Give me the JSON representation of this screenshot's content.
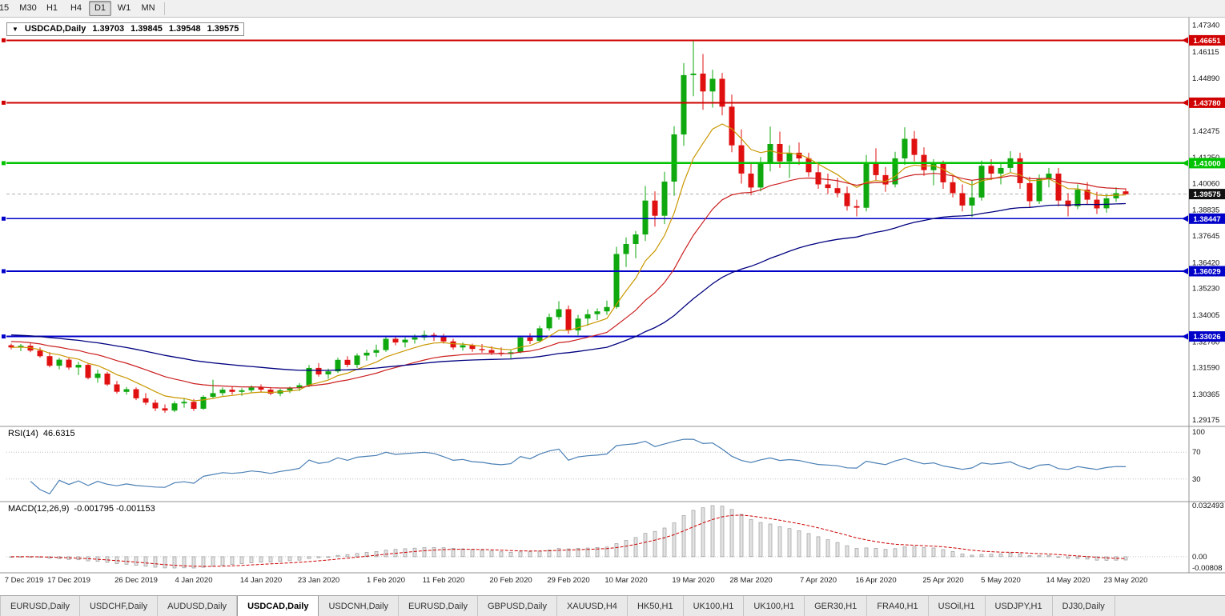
{
  "toolbar": {
    "timeframes": [
      "15",
      "M30",
      "H1",
      "H4",
      "D1",
      "W1",
      "MN"
    ],
    "active": "D1"
  },
  "chart": {
    "symbol_label": "USDCAD,Daily",
    "collapse_icon": "▼",
    "ohlc": {
      "open": "1.39703",
      "high": "1.39845",
      "low": "1.39548",
      "close": "1.39575"
    }
  },
  "rsi": {
    "label": "RSI(14)",
    "value": "46.6315",
    "levels": [
      100,
      70,
      30
    ],
    "axis_labels": [
      "100",
      "70",
      "30"
    ],
    "color": "#4a7fb5"
  },
  "macd": {
    "label": "MACD(12,26,9)",
    "values": "-0.001795 -0.001153",
    "axis_labels": [
      "0.032493",
      "0.00",
      "-0.00808"
    ],
    "histogram_color": "#bdbdbd",
    "signal_color": "#cc0000"
  },
  "tabs": {
    "items": [
      "EURUSD,Daily",
      "USDCHF,Daily",
      "AUDUSD,Daily",
      "USDCAD,Daily",
      "USDCNH,Daily",
      "EURUSD,Daily",
      "GBPUSD,Daily",
      "XAUUSD,H4",
      "HK50,H1",
      "UK100,H1",
      "UK100,H1",
      "GER30,H1",
      "FRA40,H1",
      "USOil,H1",
      "USDJPY,H1",
      "DJ30,Daily"
    ],
    "active_index": 3
  },
  "chart_data": {
    "type": "candlestick",
    "symbol": "USDCAD",
    "timeframe": "Daily",
    "candle_colors": {
      "up": "#0fa80f",
      "down": "#e01010"
    },
    "price_axis": {
      "max": 1.474,
      "min": 1.29,
      "ticks": [
        "1.47340",
        "1.46115",
        "1.44890",
        "1.43665",
        "1.42475",
        "1.41250",
        "1.40060",
        "1.38835",
        "1.37645",
        "1.36420",
        "1.35230",
        "1.34005",
        "1.32780",
        "1.31590",
        "1.30365",
        "1.29175"
      ]
    },
    "hlines": [
      {
        "value": 1.46651,
        "label": "1.46651",
        "color": "#d00000",
        "type": "resistance"
      },
      {
        "value": 1.4378,
        "label": "1.43780",
        "color": "#d00000",
        "type": "resistance"
      },
      {
        "value": 1.41,
        "label": "1.41000",
        "color": "#00c300",
        "type": "pivot"
      },
      {
        "value": 1.38447,
        "label": "1.38447",
        "color": "#0000c8",
        "type": "support"
      },
      {
        "value": 1.36029,
        "label": "1.36029",
        "color": "#0000c8",
        "type": "support"
      },
      {
        "value": 1.33026,
        "label": "1.33026",
        "color": "#0000c8",
        "type": "support"
      }
    ],
    "current_price": {
      "value": 1.39575,
      "label": "1.39575",
      "badge_color": "#111111"
    },
    "moving_averages": [
      {
        "name": "ma-fast",
        "period": 8,
        "method": "ema",
        "color": "#c99700"
      },
      {
        "name": "ma-mid",
        "period": 21,
        "method": "ema",
        "color": "#cc2020"
      },
      {
        "name": "ma-slow",
        "period": 55,
        "method": "ema",
        "color": "#000080"
      }
    ],
    "indicators": {
      "rsi": {
        "period": 14,
        "current": 46.6315
      },
      "macd": {
        "fast": 12,
        "slow": 26,
        "signal": 9,
        "current_macd": -0.001795,
        "current_signal": -0.001153
      }
    },
    "time_labels": [
      {
        "text": "7 Dec 2019",
        "bar": 0
      },
      {
        "text": "17 Dec 2019",
        "bar": 6
      },
      {
        "text": "26 Dec 2019",
        "bar": 13
      },
      {
        "text": "4 Jan 2020",
        "bar": 19
      },
      {
        "text": "14 Jan 2020",
        "bar": 26
      },
      {
        "text": "23 Jan 2020",
        "bar": 32
      },
      {
        "text": "1 Feb 2020",
        "bar": 39
      },
      {
        "text": "11 Feb 2020",
        "bar": 45
      },
      {
        "text": "20 Feb 2020",
        "bar": 52
      },
      {
        "text": "29 Feb 2020",
        "bar": 58
      },
      {
        "text": "10 Mar 2020",
        "bar": 64
      },
      {
        "text": "19 Mar 2020",
        "bar": 71
      },
      {
        "text": "28 Mar 2020",
        "bar": 77
      },
      {
        "text": "7 Apr 2020",
        "bar": 84
      },
      {
        "text": "16 Apr 2020",
        "bar": 90
      },
      {
        "text": "25 Apr 2020",
        "bar": 97
      },
      {
        "text": "5 May 2020",
        "bar": 103
      },
      {
        "text": "14 May 2020",
        "bar": 110
      },
      {
        "text": "23 May 2020",
        "bar": 116
      }
    ],
    "ohlc": [
      [
        "2019.12.06",
        1.3262,
        1.327,
        1.3243,
        1.3252
      ],
      [
        "2019.12.09",
        1.3252,
        1.3268,
        1.3235,
        1.326
      ],
      [
        "2019.12.10",
        1.326,
        1.3272,
        1.323,
        1.3238
      ],
      [
        "2019.12.11",
        1.3238,
        1.3252,
        1.3205,
        1.3212
      ],
      [
        "2019.12.12",
        1.3212,
        1.323,
        1.316,
        1.3168
      ],
      [
        "2019.12.13",
        1.3168,
        1.3205,
        1.3151,
        1.3196
      ],
      [
        "2019.12.16",
        1.3196,
        1.3204,
        1.315,
        1.316
      ],
      [
        "2019.12.17",
        1.316,
        1.3186,
        1.3125,
        1.3172
      ],
      [
        "2019.12.18",
        1.3172,
        1.318,
        1.3105,
        1.3112
      ],
      [
        "2019.12.19",
        1.3112,
        1.315,
        1.309,
        1.3132
      ],
      [
        "2019.12.20",
        1.3132,
        1.314,
        1.3075,
        1.3082
      ],
      [
        "2019.12.23",
        1.3082,
        1.3098,
        1.304,
        1.3048
      ],
      [
        "2019.12.24",
        1.3048,
        1.307,
        1.3035,
        1.306
      ],
      [
        "2019.12.26",
        1.306,
        1.3068,
        1.301,
        1.3018
      ],
      [
        "2019.12.27",
        1.3018,
        1.3042,
        1.2988,
        1.2998
      ],
      [
        "2019.12.30",
        1.2998,
        1.3012,
        1.296,
        1.2972
      ],
      [
        "2019.12.31",
        1.2972,
        1.299,
        1.2952,
        1.2962
      ],
      [
        "2020.01.02",
        1.2962,
        1.3005,
        1.2955,
        1.2995
      ],
      [
        "2020.01.03",
        1.2995,
        1.302,
        1.2975,
        1.3002
      ],
      [
        "2020.01.06",
        1.3002,
        1.3015,
        1.296,
        1.297
      ],
      [
        "2020.01.07",
        1.297,
        1.3032,
        1.2965,
        1.3025
      ],
      [
        "2020.01.08",
        1.3025,
        1.3104,
        1.3018,
        1.3042
      ],
      [
        "2020.01.09",
        1.3042,
        1.3068,
        1.303,
        1.3058
      ],
      [
        "2020.01.10",
        1.3058,
        1.3072,
        1.3035,
        1.3048
      ],
      [
        "2020.01.13",
        1.3048,
        1.3065,
        1.303,
        1.3055
      ],
      [
        "2020.01.14",
        1.3055,
        1.3078,
        1.3042,
        1.3068
      ],
      [
        "2020.01.15",
        1.3068,
        1.3082,
        1.3048,
        1.3058
      ],
      [
        "2020.01.16",
        1.3058,
        1.307,
        1.3032,
        1.304
      ],
      [
        "2020.01.17",
        1.304,
        1.3062,
        1.3028,
        1.3055
      ],
      [
        "2020.01.20",
        1.3055,
        1.3072,
        1.3042,
        1.3065
      ],
      [
        "2020.01.21",
        1.3065,
        1.3088,
        1.3052,
        1.3078
      ],
      [
        "2020.01.22",
        1.3078,
        1.3172,
        1.307,
        1.3158
      ],
      [
        "2020.01.23",
        1.3158,
        1.318,
        1.3118,
        1.3128
      ],
      [
        "2020.01.24",
        1.3128,
        1.3155,
        1.3108,
        1.3142
      ],
      [
        "2020.01.27",
        1.3142,
        1.3205,
        1.3135,
        1.3195
      ],
      [
        "2020.01.28",
        1.3195,
        1.3212,
        1.3162,
        1.3172
      ],
      [
        "2020.01.29",
        1.3172,
        1.3225,
        1.3158,
        1.3215
      ],
      [
        "2020.01.30",
        1.3215,
        1.3242,
        1.3192,
        1.3228
      ],
      [
        "2020.01.31",
        1.3228,
        1.3265,
        1.3208,
        1.324
      ],
      [
        "2020.02.03",
        1.324,
        1.3302,
        1.3232,
        1.3292
      ],
      [
        "2020.02.04",
        1.3292,
        1.3305,
        1.3262,
        1.3275
      ],
      [
        "2020.02.05",
        1.3275,
        1.3298,
        1.3252,
        1.3288
      ],
      [
        "2020.02.06",
        1.3288,
        1.3312,
        1.327,
        1.3298
      ],
      [
        "2020.02.07",
        1.3298,
        1.333,
        1.3285,
        1.331
      ],
      [
        "2020.02.10",
        1.331,
        1.332,
        1.3282,
        1.3302
      ],
      [
        "2020.02.11",
        1.3302,
        1.3315,
        1.327,
        1.328
      ],
      [
        "2020.02.12",
        1.328,
        1.3292,
        1.3242,
        1.3252
      ],
      [
        "2020.02.13",
        1.3252,
        1.3275,
        1.3238,
        1.3262
      ],
      [
        "2020.02.14",
        1.3262,
        1.327,
        1.3232,
        1.3245
      ],
      [
        "2020.02.18",
        1.3245,
        1.3268,
        1.3228,
        1.324
      ],
      [
        "2020.02.19",
        1.324,
        1.3258,
        1.3218,
        1.3228
      ],
      [
        "2020.02.20",
        1.3228,
        1.3252,
        1.3212,
        1.3222
      ],
      [
        "2020.02.21",
        1.3222,
        1.324,
        1.3202,
        1.323
      ],
      [
        "2020.02.24",
        1.323,
        1.3305,
        1.3225,
        1.3298
      ],
      [
        "2020.02.25",
        1.3298,
        1.3318,
        1.3268,
        1.3282
      ],
      [
        "2020.02.26",
        1.3282,
        1.3352,
        1.3275,
        1.334
      ],
      [
        "2020.02.27",
        1.334,
        1.3408,
        1.333,
        1.3392
      ],
      [
        "2020.02.28",
        1.3392,
        1.3465,
        1.338,
        1.3428
      ],
      [
        "2020.03.02",
        1.3428,
        1.3445,
        1.3315,
        1.333
      ],
      [
        "2020.03.03",
        1.333,
        1.3402,
        1.3308,
        1.3385
      ],
      [
        "2020.03.04",
        1.3385,
        1.3428,
        1.3352,
        1.3405
      ],
      [
        "2020.03.05",
        1.3405,
        1.3432,
        1.3378,
        1.3418
      ],
      [
        "2020.03.06",
        1.3418,
        1.3468,
        1.3402,
        1.3438
      ],
      [
        "2020.03.09",
        1.3438,
        1.3715,
        1.343,
        1.3682
      ],
      [
        "2020.03.10",
        1.3682,
        1.3758,
        1.3622,
        1.3728
      ],
      [
        "2020.03.11",
        1.3728,
        1.3788,
        1.3662,
        1.3772
      ],
      [
        "2020.03.12",
        1.3772,
        1.3995,
        1.3742,
        1.3928
      ],
      [
        "2020.03.13",
        1.3928,
        1.397,
        1.3808,
        1.3858
      ],
      [
        "2020.03.16",
        1.3858,
        1.406,
        1.382,
        1.4015
      ],
      [
        "2020.03.17",
        1.4015,
        1.427,
        1.395,
        1.4232
      ],
      [
        "2020.03.18",
        1.4232,
        1.456,
        1.418,
        1.4505
      ],
      [
        "2020.03.19",
        1.4505,
        1.4668,
        1.4408,
        1.4512
      ],
      [
        "2020.03.20",
        1.4512,
        1.4602,
        1.4345,
        1.443
      ],
      [
        "2020.03.23",
        1.443,
        1.453,
        1.4355,
        1.4488
      ],
      [
        "2020.03.24",
        1.4488,
        1.4515,
        1.432,
        1.436
      ],
      [
        "2020.03.25",
        1.436,
        1.4415,
        1.415,
        1.4182
      ],
      [
        "2020.03.26",
        1.4182,
        1.4255,
        1.4006,
        1.4052
      ],
      [
        "2020.03.27",
        1.4052,
        1.4105,
        1.3952,
        1.3988
      ],
      [
        "2020.03.30",
        1.3988,
        1.4128,
        1.397,
        1.4098
      ],
      [
        "2020.03.31",
        1.4098,
        1.4268,
        1.4062,
        1.4188
      ],
      [
        "2020.04.01",
        1.4188,
        1.4245,
        1.4078,
        1.4108
      ],
      [
        "2020.04.02",
        1.4108,
        1.4182,
        1.4032,
        1.4148
      ],
      [
        "2020.04.03",
        1.4148,
        1.4195,
        1.4092,
        1.4122
      ],
      [
        "2020.04.06",
        1.4122,
        1.4148,
        1.4038,
        1.4058
      ],
      [
        "2020.04.07",
        1.4058,
        1.4092,
        1.3982,
        1.4002
      ],
      [
        "2020.04.08",
        1.4002,
        1.4052,
        1.3958,
        1.3985
      ],
      [
        "2020.04.09",
        1.3985,
        1.4032,
        1.3942,
        1.3962
      ],
      [
        "2020.04.13",
        1.3962,
        1.3992,
        1.3882,
        1.3902
      ],
      [
        "2020.04.14",
        1.3902,
        1.3932,
        1.3855,
        1.3895
      ],
      [
        "2020.04.15",
        1.3895,
        1.4138,
        1.3878,
        1.4098
      ],
      [
        "2020.04.16",
        1.4098,
        1.4168,
        1.4022,
        1.4045
      ],
      [
        "2020.04.17",
        1.4045,
        1.4082,
        1.3968,
        1.4002
      ],
      [
        "2020.04.20",
        1.4002,
        1.4152,
        1.3988,
        1.4122
      ],
      [
        "2020.04.21",
        1.4122,
        1.4265,
        1.4092,
        1.4212
      ],
      [
        "2020.04.22",
        1.4212,
        1.4248,
        1.4108,
        1.4138
      ],
      [
        "2020.04.23",
        1.4138,
        1.4172,
        1.4042,
        1.4068
      ],
      [
        "2020.04.24",
        1.4068,
        1.4118,
        1.3998,
        1.4098
      ],
      [
        "2020.04.27",
        1.4098,
        1.4112,
        1.3982,
        1.4012
      ],
      [
        "2020.04.28",
        1.4012,
        1.4042,
        1.3942,
        1.3962
      ],
      [
        "2020.04.29",
        1.3962,
        1.4002,
        1.3878,
        1.3905
      ],
      [
        "2020.04.30",
        1.3905,
        1.4022,
        1.3852,
        1.3942
      ],
      [
        "2020.05.01",
        1.3942,
        1.4112,
        1.3928,
        1.4088
      ],
      [
        "2020.05.04",
        1.4088,
        1.4118,
        1.4022,
        1.4052
      ],
      [
        "2020.05.05",
        1.4052,
        1.4098,
        1.4002,
        1.4078
      ],
      [
        "2020.05.06",
        1.4078,
        1.4155,
        1.4058,
        1.4122
      ],
      [
        "2020.05.07",
        1.4122,
        1.4148,
        1.3982,
        1.4008
      ],
      [
        "2020.05.08",
        1.4008,
        1.4038,
        1.3898,
        1.3925
      ],
      [
        "2020.05.11",
        1.3925,
        1.4048,
        1.3912,
        1.4028
      ],
      [
        "2020.05.12",
        1.4028,
        1.4078,
        1.3988,
        1.4052
      ],
      [
        "2020.05.13",
        1.4052,
        1.4078,
        1.3902,
        1.3928
      ],
      [
        "2020.05.14",
        1.3928,
        1.3962,
        1.3855,
        1.3902
      ],
      [
        "2020.05.15",
        1.3902,
        1.4002,
        1.3888,
        1.3978
      ],
      [
        "2020.05.18",
        1.3978,
        1.4012,
        1.3912,
        1.3932
      ],
      [
        "2020.05.19",
        1.3932,
        1.3968,
        1.3866,
        1.3892
      ],
      [
        "2020.05.20",
        1.3892,
        1.3958,
        1.3872,
        1.3938
      ],
      [
        "2020.05.21",
        1.3938,
        1.3988,
        1.3922,
        1.3962
      ],
      [
        "2020.05.22",
        1.39703,
        1.39845,
        1.39548,
        1.39575
      ]
    ]
  }
}
